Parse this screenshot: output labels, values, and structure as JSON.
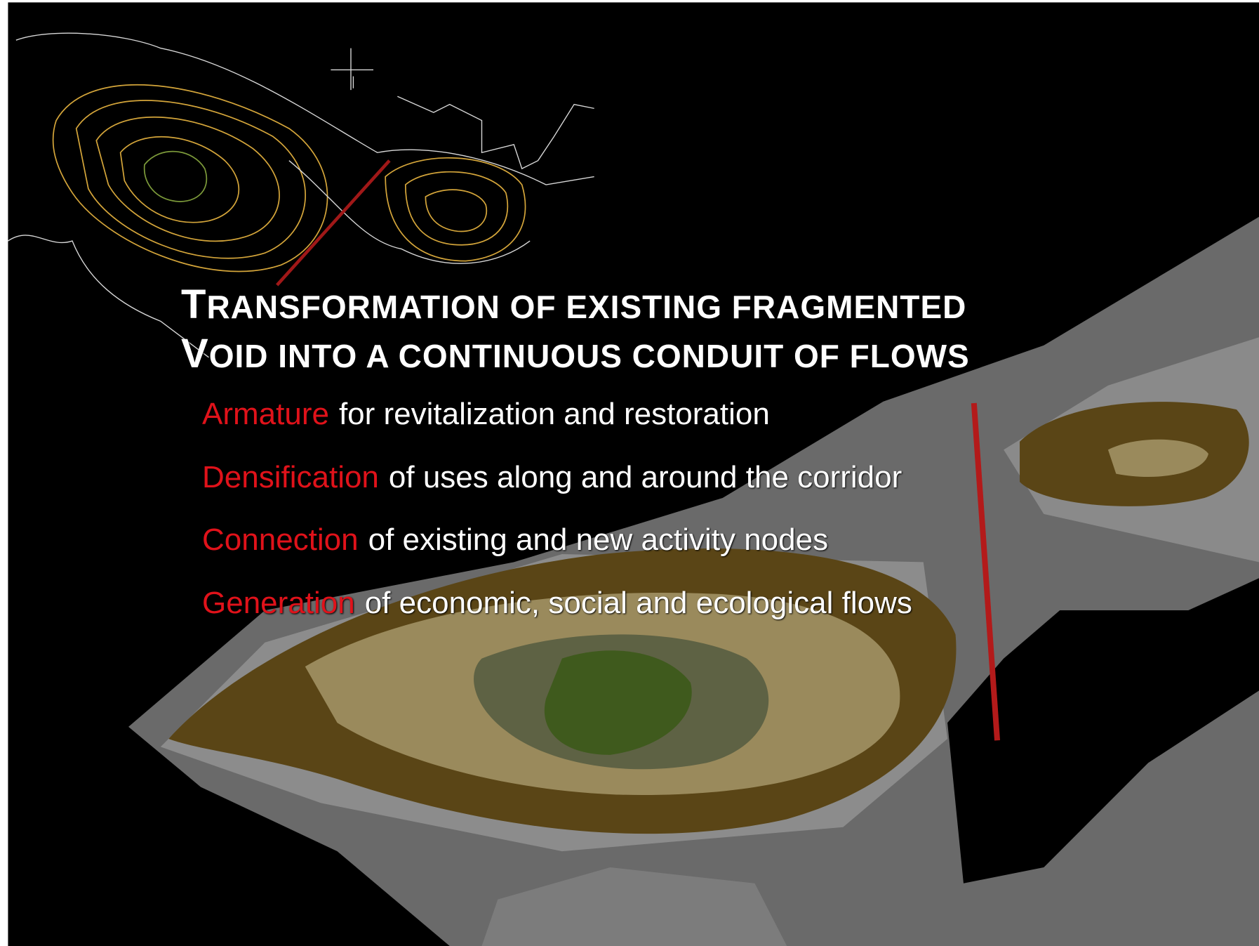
{
  "title": [
    "TRANSFORMATION OF EXISTING FRAGMENTED",
    "VOID INTO A CONTINUOUS CONDUIT OF FLOWS"
  ],
  "bullets": [
    {
      "keyword": "Armature",
      "text": "for revitalization and restoration"
    },
    {
      "keyword": "Densification",
      "text": "of uses along and around the corridor"
    },
    {
      "keyword": "Connection",
      "text": "of existing and new activity nodes"
    },
    {
      "keyword": "Generation",
      "text": "of economic, social and ecological flows"
    }
  ]
}
